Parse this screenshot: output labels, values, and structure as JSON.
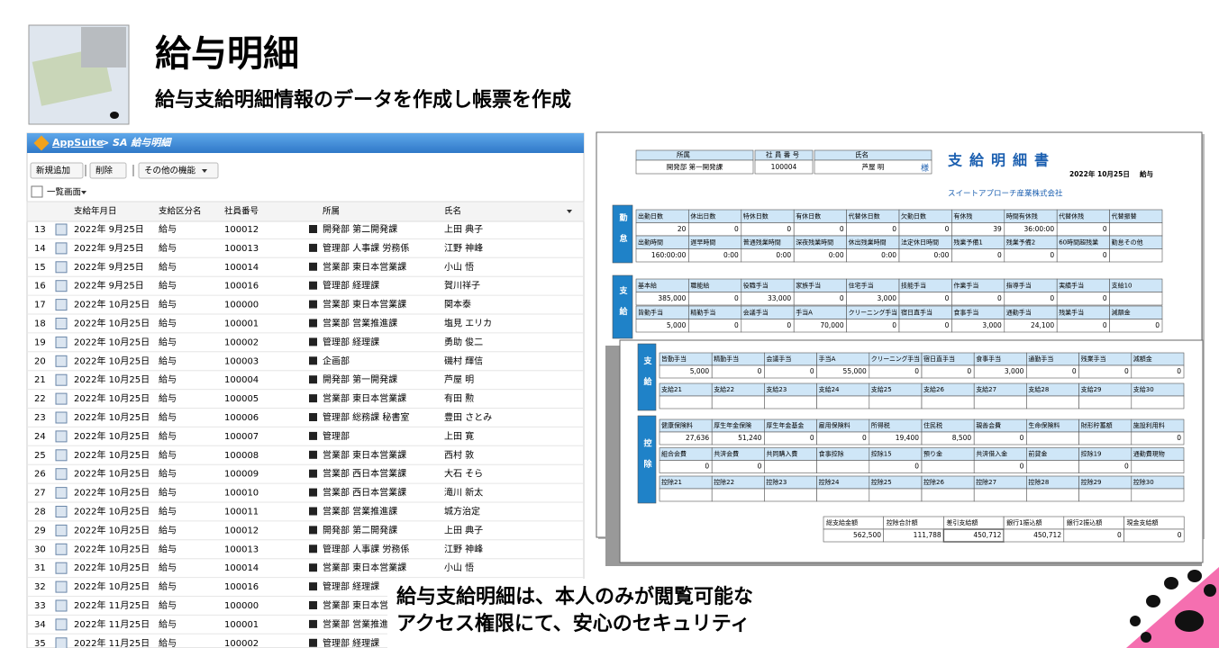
{
  "header": {
    "title": "給与明細",
    "subtitle": "給与支給明細情報のデータを作成し帳票を作成"
  },
  "app": {
    "brand": "AppSuite",
    "breadcrumb": "> SA 給与明細",
    "buttons": [
      "新規追加",
      "削除",
      "その他の機能"
    ],
    "view": "一覧画面",
    "columns": [
      "支給年月日",
      "支給区分名",
      "社員番号",
      "所属",
      "氏名"
    ],
    "rows": [
      [
        13,
        "2022年 9月25日",
        "給与",
        "100012",
        "開発部 第二開発課",
        "上田 典子"
      ],
      [
        14,
        "2022年 9月25日",
        "給与",
        "100013",
        "管理部 人事課 労務係",
        "江野 神峰"
      ],
      [
        15,
        "2022年 9月25日",
        "給与",
        "100014",
        "営業部 東日本営業課",
        "小山 悟"
      ],
      [
        16,
        "2022年 9月25日",
        "給与",
        "100016",
        "管理部 経理課",
        "賀川祥子"
      ],
      [
        17,
        "2022年 10月25日",
        "給与",
        "100000",
        "営業部 東日本営業課",
        "関本泰"
      ],
      [
        18,
        "2022年 10月25日",
        "給与",
        "100001",
        "営業部 営業推進課",
        "塩見 エリカ"
      ],
      [
        19,
        "2022年 10月25日",
        "給与",
        "100002",
        "管理部 経理課",
        "勇助 俊二"
      ],
      [
        20,
        "2022年 10月25日",
        "給与",
        "100003",
        "企画部",
        "磯村 輝信"
      ],
      [
        21,
        "2022年 10月25日",
        "給与",
        "100004",
        "開発部 第一開発課",
        "芦屋 明"
      ],
      [
        22,
        "2022年 10月25日",
        "給与",
        "100005",
        "営業部 東日本営業課",
        "有田 勲"
      ],
      [
        23,
        "2022年 10月25日",
        "給与",
        "100006",
        "管理部 総務課 秘書室",
        "豊田 さとみ"
      ],
      [
        24,
        "2022年 10月25日",
        "給与",
        "100007",
        "管理部",
        "上田 寛"
      ],
      [
        25,
        "2022年 10月25日",
        "給与",
        "100008",
        "営業部 東日本営業課",
        "西村 敦"
      ],
      [
        26,
        "2022年 10月25日",
        "給与",
        "100009",
        "営業部 西日本営業課",
        "大石 そら"
      ],
      [
        27,
        "2022年 10月25日",
        "給与",
        "100010",
        "営業部 西日本営業課",
        "滝川 新太"
      ],
      [
        28,
        "2022年 10月25日",
        "給与",
        "100011",
        "営業部 営業推進課",
        "城方治定"
      ],
      [
        29,
        "2022年 10月25日",
        "給与",
        "100012",
        "開発部 第二開発課",
        "上田 典子"
      ],
      [
        30,
        "2022年 10月25日",
        "給与",
        "100013",
        "管理部 人事課 労務係",
        "江野 神峰"
      ],
      [
        31,
        "2022年 10月25日",
        "給与",
        "100014",
        "営業部 東日本営業課",
        "小山 悟"
      ],
      [
        32,
        "2022年 10月25日",
        "給与",
        "100016",
        "管理部 経理課"
      ],
      [
        33,
        "2022年 11月25日",
        "給与",
        "100000",
        "営業部 東日本営"
      ],
      [
        34,
        "2022年 11月25日",
        "給与",
        "100001",
        "営業部 営業推進"
      ],
      [
        35,
        "2022年 11月25日",
        "給与",
        "100002",
        "管理部 経理課"
      ]
    ]
  },
  "payslip_front": {
    "dept_label": "所属",
    "dept": "開発部 第一開発課",
    "id_label": "社 員 番 号",
    "id": "100004",
    "name_label": "氏名",
    "name": "芦屋 明",
    "honorific": "様",
    "title": "支給明細書",
    "date": "2022年 10月25日",
    "kind": "給与",
    "company": "スイートアプローチ産業株式会社",
    "sections": [
      {
        "label": "勤怠",
        "rows": [
          {
            "labels": [
              "出勤日数",
              "休出日数",
              "特休日数",
              "有休日数",
              "代替休日数",
              "欠勤日数",
              "有休残",
              "時間有休残",
              "代替休残",
              "代替振替"
            ],
            "values": [
              "20",
              "0",
              "0",
              "0",
              "0",
              "0",
              "39",
              "36:00:00",
              "0",
              null
            ]
          },
          {
            "labels": [
              "出勤時間",
              "遅早時間",
              "普通残業時間",
              "深夜残業時間",
              "休出残業時間",
              "法定休日時間",
              "残業予備1",
              "残業予備2",
              "60時間超残業",
              "勤怠その他"
            ],
            "values": [
              "160:00:00",
              "0:00",
              "0:00",
              "0:00",
              "0:00",
              "0:00",
              "0",
              "0",
              "0",
              null
            ]
          }
        ]
      },
      {
        "label": "支給",
        "rows": [
          {
            "labels": [
              "基本給",
              "職能給",
              "役職手当",
              "家族手当",
              "住宅手当",
              "技能手当",
              "作業手当",
              "指導手当",
              "実績手当",
              "支給10"
            ],
            "values": [
              "385,000",
              "0",
              "33,000",
              "0",
              "3,000",
              "0",
              "0",
              "0",
              "0",
              null
            ]
          },
          {
            "labels": [
              "皆勤手当",
              "精勤手当",
              "会議手当",
              "手当A",
              "クリーニング手当",
              "宿日直手当",
              "食事手当",
              "通勤手当",
              "残業手当",
              "減額金"
            ],
            "values": [
              "5,000",
              "0",
              "0",
              "70,000",
              "0",
              "0",
              "3,000",
              "24,100",
              "0",
              "0"
            ]
          }
        ]
      }
    ]
  },
  "payslip_back": {
    "sections": [
      {
        "label": "支給",
        "rows": [
          {
            "labels": [
              "皆勤手当",
              "精勤手当",
              "会議手当",
              "手当A",
              "クリーニング手当",
              "宿日直手当",
              "食事手当",
              "通勤手当",
              "残業手当",
              "減額金"
            ],
            "values": [
              "5,000",
              "0",
              "0",
              "55,000",
              "0",
              "0",
              "3,000",
              "0",
              "0",
              "0"
            ]
          },
          {
            "labels": [
              "支給21",
              "支給22",
              "支給23",
              "支給24",
              "支給25",
              "支給26",
              "支給27",
              "支給28",
              "支給29",
              "支給30"
            ],
            "values": [
              null,
              null,
              null,
              null,
              null,
              null,
              null,
              null,
              null,
              null
            ]
          }
        ]
      },
      {
        "label": "控除",
        "rows": [
          {
            "labels": [
              "健康保険料",
              "厚生年金保険",
              "厚生年金基金",
              "雇用保険料",
              "所得税",
              "住民税",
              "親善会費",
              "生命保険料",
              "財形貯蓄額",
              "施設利用料"
            ],
            "values": [
              "27,636",
              "51,240",
              "0",
              "0",
              "19,400",
              "8,500",
              "0",
              null,
              null,
              "0"
            ]
          },
          {
            "labels": [
              "組合会費",
              "共済会費",
              "共同購入費",
              "食事控除",
              "控除15",
              "預り金",
              "共済借入金",
              "前貸金",
              "控除19",
              "通勤費現物"
            ],
            "values": [
              "0",
              "0",
              null,
              null,
              "0",
              null,
              "0",
              null,
              "0",
              null
            ]
          },
          {
            "labels": [
              "控除21",
              "控除22",
              "控除23",
              "控除24",
              "控除25",
              "控除26",
              "控除27",
              "控除28",
              "控除29",
              "控除30"
            ],
            "values": [
              null,
              null,
              null,
              null,
              null,
              null,
              null,
              null,
              null,
              null
            ]
          }
        ]
      }
    ],
    "totals": {
      "labels": [
        "総支給金額",
        "控除合計額",
        "差引支給額",
        "銀行1振込額",
        "銀行2振込額",
        "現金支給額"
      ],
      "values": [
        "562,500",
        "111,788",
        "450,712",
        "450,712",
        "0",
        "0"
      ]
    }
  },
  "caption": [
    "給与支給明細は、本人のみが閲覧可能な",
    "アクセス権限にて、安心のセキュリティ"
  ]
}
